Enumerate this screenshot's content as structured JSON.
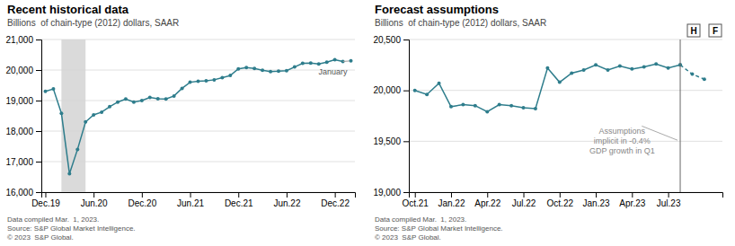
{
  "chart_data": [
    {
      "type": "line",
      "title": "Recent historical data",
      "subtitle": "Billions  of chain-type (2012) dollars, SAAR",
      "x": [
        0,
        1,
        2,
        3,
        4,
        5,
        6,
        7,
        8,
        9,
        10,
        11,
        12,
        13,
        14,
        15,
        16,
        17,
        18,
        19,
        20,
        21,
        22,
        23,
        24,
        25,
        26,
        27,
        28,
        29,
        30,
        31,
        32,
        33,
        34,
        35,
        36,
        37
      ],
      "values": [
        19300,
        19380,
        18580,
        16600,
        17400,
        18300,
        18530,
        18620,
        18800,
        18950,
        19050,
        18950,
        19000,
        19100,
        19060,
        19050,
        19150,
        19400,
        19600,
        19630,
        19650,
        19680,
        19750,
        19820,
        20040,
        20080,
        20050,
        19990,
        19950,
        19960,
        19980,
        20100,
        20220,
        20230,
        20200,
        20260,
        20340,
        20280
      ],
      "color": "#2e7d8c",
      "marker": "circle",
      "annotations": [
        {
          "text": "January",
          "x": 38,
          "y": 20300
        }
      ],
      "band": {
        "from": 2,
        "to": 5,
        "color": "#d3d3d3"
      },
      "xlim": [
        -0.5,
        38.5
      ],
      "xticks": [
        {
          "value": 0,
          "label": "Dec.19"
        },
        {
          "value": 6,
          "label": "Jun.20"
        },
        {
          "value": 12,
          "label": "Dec.20"
        },
        {
          "value": 18,
          "label": "Jun.21"
        },
        {
          "value": 24,
          "label": "Dec.21"
        },
        {
          "value": 30,
          "label": "Jun.22"
        },
        {
          "value": 36,
          "label": "Dec.22"
        }
      ],
      "ylim": [
        16000,
        21000
      ],
      "yticks": [
        {
          "value": 16000,
          "label": "16,000"
        },
        {
          "value": 17000,
          "label": "17,000"
        },
        {
          "value": 18000,
          "label": "18,000"
        },
        {
          "value": 19000,
          "label": "19,000"
        },
        {
          "value": 20000,
          "label": "20,000"
        },
        {
          "value": 21000,
          "label": "21,000"
        }
      ],
      "grid": true,
      "footnote": [
        "Data compiled Mar.  1, 2023.",
        "Source: S&P Global Market Intelligence.",
        "© 2023  S&P Global."
      ]
    },
    {
      "type": "line",
      "title": "Forecast assumptions",
      "subtitle": "Billions  of chain-type (2012) dollars, SAAR",
      "color": "#2e7d8c",
      "marker": "circle",
      "series": [
        {
          "name": "H",
          "line_style": "solid",
          "x": [
            0,
            1,
            2,
            3,
            4,
            5,
            6,
            7,
            8,
            9,
            10,
            11,
            12,
            13,
            14,
            15,
            16,
            17,
            18,
            19,
            20,
            21,
            22
          ],
          "values": [
            20000,
            19960,
            20070,
            19840,
            19860,
            19850,
            19790,
            19860,
            19850,
            19830,
            19820,
            20220,
            20080,
            20170,
            20200,
            20250,
            20200,
            20240,
            20210,
            20230,
            20260,
            20220,
            20250
          ]
        },
        {
          "name": "F",
          "line_style": "dashed",
          "x": [
            22,
            23,
            24
          ],
          "values": [
            20250,
            20160,
            20110
          ]
        }
      ],
      "vline": 22,
      "annotations": [
        {
          "text": [
            "Assumptions",
            "implicit in -0.4%",
            "GDP growth in Q1"
          ]
        }
      ],
      "xlim": [
        -0.5,
        25.5
      ],
      "xticks": [
        {
          "value": 0,
          "label": "Oct.21"
        },
        {
          "value": 3,
          "label": "Jan.22"
        },
        {
          "value": 6,
          "label": "Apr.22"
        },
        {
          "value": 9,
          "label": "Jul.22"
        },
        {
          "value": 12,
          "label": "Oct.22"
        },
        {
          "value": 15,
          "label": "Jan.23"
        },
        {
          "value": 18,
          "label": "Apr.23"
        },
        {
          "value": 21,
          "label": "Jul.23"
        }
      ],
      "ylim": [
        19000,
        20500
      ],
      "yticks": [
        {
          "value": 19000,
          "label": "19,000"
        },
        {
          "value": 19500,
          "label": "19,500"
        },
        {
          "value": 20000,
          "label": "20,000"
        },
        {
          "value": 20500,
          "label": "20,500"
        }
      ],
      "grid": true,
      "footnote": [
        "Data compiled Mar.  1, 2023.",
        "Source: S&P Global Market Intelligence.",
        "© 2023  S&P Global."
      ]
    }
  ]
}
